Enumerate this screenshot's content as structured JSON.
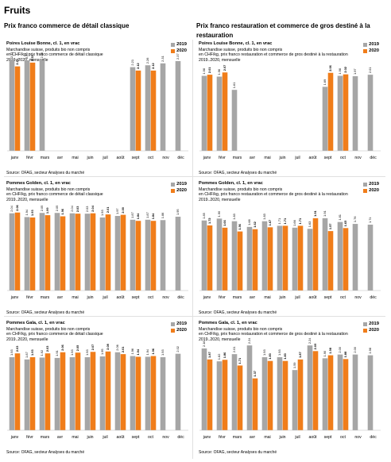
{
  "page_title": "Fruits",
  "column_titles": {
    "left": "Prix franco commerce de détail classique",
    "right": "Prix franco restauration et commerce de gros destiné à la restauration"
  },
  "colors": {
    "y2019": "#a6a6a6",
    "y2020": "#f07d1a"
  },
  "chart_data": [
    {
      "type": "bar",
      "title": "Poires Louise Bonne, cl. 1, en vrac",
      "subtitle": [
        "Marchandise suisse, produits bio non compris",
        "en CHF/kg,  prix franco commerce de détail classique",
        "2019..2020, mensuelle"
      ],
      "source": "Source: OFAG, secteur Analyses du marché",
      "categories": [
        "janv",
        "févr",
        "mars",
        "avr",
        "mai",
        "juin",
        "juil",
        "août",
        "sept",
        "oct",
        "nov",
        "déc"
      ],
      "series": [
        {
          "name": "2019",
          "values": [
            2.41,
            2.39,
            2.4,
            null,
            null,
            null,
            null,
            null,
            2.21,
            2.26,
            2.31,
            2.37
          ]
        },
        {
          "name": "2020",
          "values": [
            2.23,
            2.33,
            null,
            null,
            null,
            null,
            null,
            null,
            2.12,
            2.12,
            null,
            null
          ]
        }
      ],
      "ylim": [
        0,
        3.0
      ]
    },
    {
      "type": "bar",
      "title": "Poires Louise Bonne, cl. 1, en vrac",
      "subtitle": [
        "Marchandise suisse, produits bio non compris",
        "en CHF/kg,  prix franco restauration et commerce de gros destiné à la restauration",
        "2019..2020, mensuelle"
      ],
      "source": "Source: OFAG, secteur Analyses du marché",
      "categories": [
        "janv",
        "févr",
        "mars",
        "avr",
        "mai",
        "juin",
        "juil",
        "août",
        "sept",
        "oct",
        "nov",
        "déc"
      ],
      "series": [
        {
          "name": "2019",
          "values": [
            1.98,
            1.96,
            1.61,
            null,
            null,
            null,
            null,
            null,
            1.69,
            1.98,
            1.97,
            2.01
          ]
        },
        {
          "name": "2020",
          "values": [
            2.01,
            2.07,
            null,
            null,
            null,
            null,
            null,
            null,
            2.06,
            2.02,
            null,
            null
          ]
        }
      ],
      "ylim": [
        0,
        3.0
      ]
    },
    {
      "type": "bar",
      "title": "Pommes Golden, cl. 1, en vrac",
      "subtitle": [
        "Marchandise suisse, produits bio non compris",
        "en CHF/kg,  prix franco commerce de détail classique",
        "2019..2020, mensuelle"
      ],
      "source": "Source: OFAG, secteur Analyses du marché",
      "categories": [
        "janv",
        "févr",
        "mars",
        "avr",
        "mai",
        "juin",
        "juil",
        "août",
        "sept",
        "oct",
        "nov",
        "déc"
      ],
      "series": [
        {
          "name": "2019",
          "values": [
            2.04,
            1.94,
            2.05,
            2.05,
            2.04,
            2.03,
            1.93,
            1.97,
            1.87,
            1.87,
            1.86,
            1.95
          ]
        },
        {
          "name": "2020",
          "values": [
            2.06,
            1.93,
            1.99,
            1.96,
            2.03,
            2.04,
            2.01,
            2.0,
            1.84,
            1.84,
            null,
            null
          ]
        }
      ],
      "ylim": [
        0,
        3.0
      ]
    },
    {
      "type": "bar",
      "title": "Pommes Golden, cl. 1, en vrac",
      "subtitle": [
        "Marchandise suisse, produits bio non compris",
        "en CHF/kg,  prix franco restauration et commerce de gros destiné à la restauration",
        "2019..2020, mensuelle"
      ],
      "source": "Source: OFAG, secteur Analyses du marché",
      "categories": [
        "janv",
        "févr",
        "mars",
        "avr",
        "mai",
        "juin",
        "juil",
        "août",
        "sept",
        "oct",
        "nov",
        "déc"
      ],
      "series": [
        {
          "name": "2019",
          "values": [
            1.85,
            1.9,
            1.83,
            1.68,
            1.83,
            1.71,
            1.66,
            1.63,
            1.91,
            1.81,
            1.76,
            1.74
          ]
        },
        {
          "name": "2020",
          "values": [
            1.72,
            1.66,
            1.56,
            1.62,
            1.67,
            1.71,
            1.71,
            1.91,
            1.57,
            1.65,
            null,
            null
          ]
        }
      ],
      "ylim": [
        0,
        3.0
      ]
    },
    {
      "type": "bar",
      "title": "Pommes Gala, cl. 1, en vrac",
      "subtitle": [
        "Marchandise suisse, produits bio non compris",
        "en CHF/kg,  prix franco commerce de détail classique",
        "2019..2020, mensuelle"
      ],
      "source": "Source: OFAG, secteur Analyses du marché",
      "categories": [
        "janv",
        "févr",
        "mars",
        "avr",
        "mai",
        "juin",
        "juil",
        "août",
        "sept",
        "oct",
        "nov",
        "déc"
      ],
      "series": [
        {
          "name": "2019",
          "values": [
            1.93,
            1.87,
            1.92,
            1.91,
            1.93,
            1.93,
            1.95,
            2.06,
            1.96,
            1.94,
            1.93,
            2.02
          ]
        },
        {
          "name": "2020",
          "values": [
            2.03,
            1.93,
            2.03,
            2.06,
            2.05,
            2.07,
            2.08,
            2.01,
            1.94,
            1.96,
            null,
            null
          ]
        }
      ],
      "ylim": [
        0,
        3.0
      ]
    },
    {
      "type": "bar",
      "title": "Pommes Gala, cl. 1, en vrac",
      "subtitle": [
        "Marchandise suisse, produits bio non compris",
        "en CHF/kg,  prix franco restauration et commerce de gros destiné à la restauration",
        "2019..2020, mensuelle"
      ],
      "source": "Source: OFAG, secteur Analyses du marché",
      "categories": [
        "janv",
        "févr",
        "mars",
        "avr",
        "mai",
        "juin",
        "juil",
        "août",
        "sept",
        "oct",
        "nov",
        "déc"
      ],
      "series": [
        {
          "name": "2019",
          "values": [
            2.16,
            1.82,
            2.01,
            2.24,
            1.93,
            1.93,
            1.59,
            2.24,
            1.9,
            2.0,
            2.0,
            1.98
          ]
        },
        {
          "name": "2020",
          "values": [
            1.87,
            1.86,
            1.71,
            1.37,
            1.83,
            1.83,
            1.87,
            2.09,
            1.98,
            1.88,
            null,
            null
          ]
        }
      ],
      "ylim": [
        0,
        3.0
      ]
    }
  ]
}
